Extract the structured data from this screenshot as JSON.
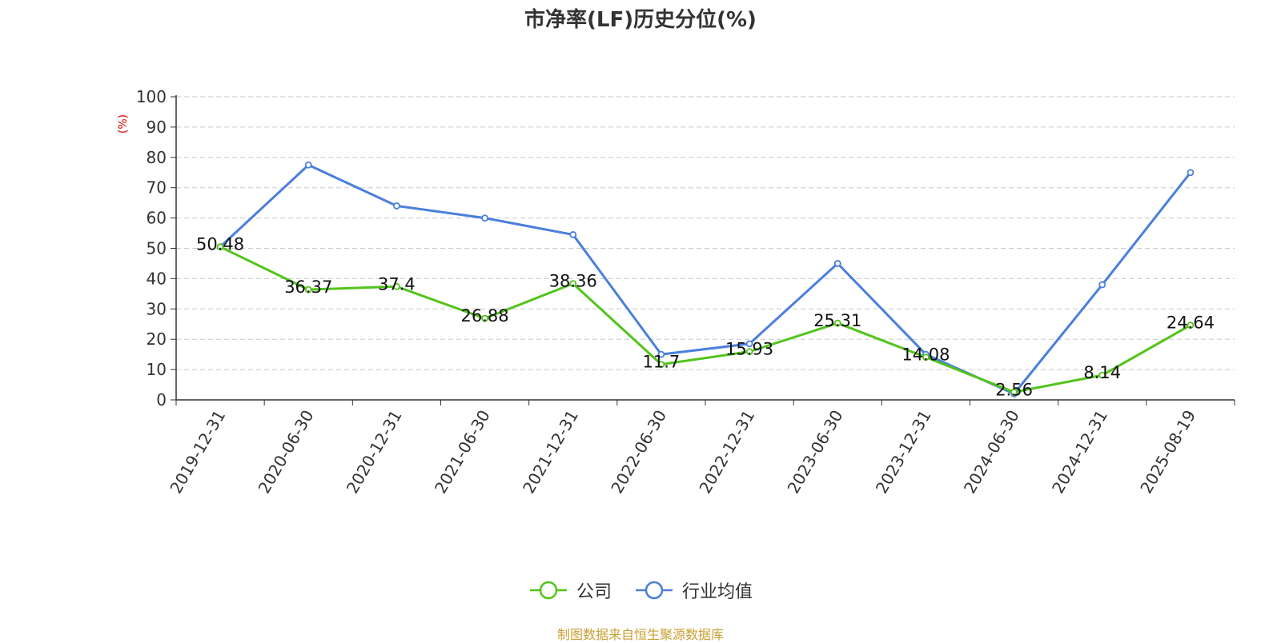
{
  "chart_data": {
    "type": "line",
    "title": "市净率(LF)历史分位(%)",
    "ylabel": "(%)",
    "xlabel": "",
    "ylim": [
      0,
      100
    ],
    "yticks": [
      0,
      10,
      20,
      30,
      40,
      50,
      60,
      70,
      80,
      90,
      100
    ],
    "grid": true,
    "legend_position": "bottom",
    "categories": [
      "2019-12-31",
      "2020-06-30",
      "2020-12-31",
      "2021-06-30",
      "2021-12-31",
      "2022-06-30",
      "2022-12-31",
      "2023-06-30",
      "2023-12-31",
      "2024-06-30",
      "2024-12-31",
      "2025-08-19"
    ],
    "series": [
      {
        "name": "公司",
        "color": "#52c41a",
        "values": [
          50.48,
          36.37,
          37.4,
          26.88,
          38.36,
          11.7,
          15.93,
          25.31,
          14.08,
          2.56,
          8.14,
          24.64
        ],
        "data_labels": [
          "50.48",
          "36.37",
          "37.4",
          "26.88",
          "38.36",
          "11.7",
          "15.93",
          "25.31",
          "14.08",
          "2.56",
          "8.14",
          "24.64"
        ]
      },
      {
        "name": "行业均值",
        "color": "#4a7fdc",
        "values": [
          50.5,
          77.5,
          64.0,
          60.0,
          54.5,
          15.0,
          18.5,
          45.0,
          15.0,
          2.0,
          38.0,
          75.0
        ]
      }
    ]
  },
  "source_note": "制图数据来自恒生聚源数据库"
}
